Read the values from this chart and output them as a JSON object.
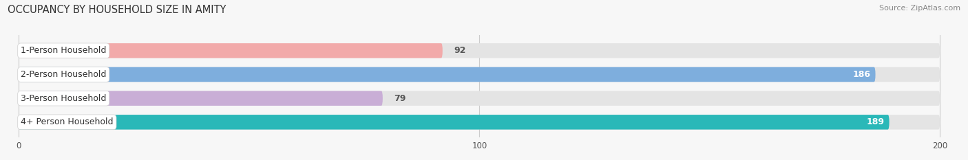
{
  "title": "OCCUPANCY BY HOUSEHOLD SIZE IN AMITY",
  "source": "Source: ZipAtlas.com",
  "categories": [
    "1-Person Household",
    "2-Person Household",
    "3-Person Household",
    "4+ Person Household"
  ],
  "values": [
    92,
    186,
    79,
    189
  ],
  "bar_colors": [
    "#f2aaaa",
    "#7eaedd",
    "#c9aed6",
    "#2ab8b8"
  ],
  "track_color": "#e4e4e4",
  "xlim": [
    -2,
    204
  ],
  "xlim_data": [
    0,
    200
  ],
  "xticks": [
    0,
    100,
    200
  ],
  "background_color": "#f7f7f7",
  "bar_height": 0.62,
  "bar_gap": 1.0,
  "title_fontsize": 10.5,
  "label_fontsize": 9,
  "value_fontsize": 9,
  "source_fontsize": 8
}
